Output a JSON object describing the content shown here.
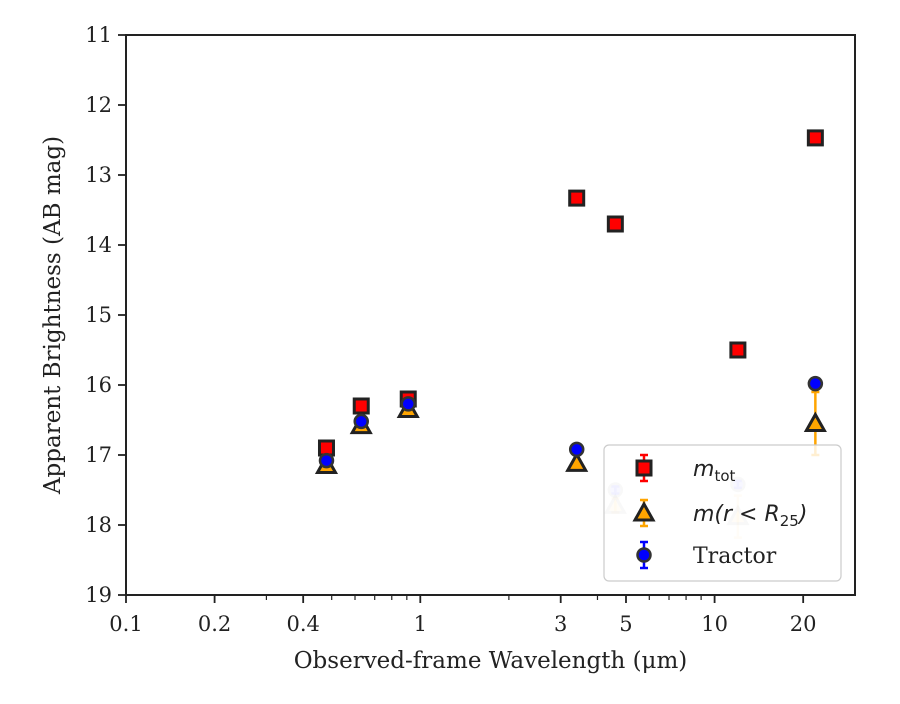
{
  "chart_data": {
    "type": "scatter",
    "xlabel": "Observed-frame Wavelength (μm)",
    "ylabel": "Apparent Brightness (AB mag)",
    "xscale": "log",
    "xlim": [
      0.1,
      30
    ],
    "ylim": [
      19,
      11
    ],
    "y_inverted": true,
    "grid": false,
    "legend_position": "lower-right",
    "x_ticks": [
      0.1,
      0.2,
      0.4,
      1,
      3,
      5,
      10,
      20
    ],
    "x_tick_labels": [
      "0.1",
      "0.2",
      "0.4",
      "1",
      "3",
      "5",
      "10",
      "20"
    ],
    "y_ticks": [
      11,
      12,
      13,
      14,
      15,
      16,
      17,
      18,
      19
    ],
    "y_tick_labels": [
      "11",
      "12",
      "13",
      "14",
      "15",
      "16",
      "17",
      "18",
      "19"
    ],
    "series": [
      {
        "name": "m_tot",
        "legend_main": "m",
        "legend_sub": "tot",
        "marker": "square",
        "fill": "#ff0000",
        "edge": "#222222",
        "errcolor": "#ff0000",
        "points": [
          {
            "x": 0.48,
            "y": 16.9,
            "err": 0.05
          },
          {
            "x": 0.63,
            "y": 16.3,
            "err": 0.05
          },
          {
            "x": 0.91,
            "y": 16.2,
            "err": 0.05
          },
          {
            "x": 3.4,
            "y": 13.33,
            "err": 0.03
          },
          {
            "x": 4.6,
            "y": 13.7,
            "err": 0.03
          },
          {
            "x": 12.0,
            "y": 15.5,
            "err": 0.05
          },
          {
            "x": 22.0,
            "y": 12.47,
            "err": 0.03
          }
        ]
      },
      {
        "name": "m(r < R25)",
        "legend_main": "m(r < R",
        "legend_sub": "25",
        "legend_tail": ")",
        "marker": "triangle",
        "fill": "#ffa500",
        "edge": "#222222",
        "errcolor": "#ffa500",
        "points": [
          {
            "x": 0.48,
            "y": 17.15,
            "err": 0.05,
            "faded": false
          },
          {
            "x": 0.63,
            "y": 16.58,
            "err": 0.05,
            "faded": false
          },
          {
            "x": 0.91,
            "y": 16.35,
            "err": 0.05,
            "faded": false
          },
          {
            "x": 3.4,
            "y": 17.12,
            "err": 0.05,
            "faded": false
          },
          {
            "x": 4.6,
            "y": 17.72,
            "err": 0.1,
            "faded": true
          },
          {
            "x": 12.0,
            "y": 17.88,
            "err": 0.3,
            "faded": true
          },
          {
            "x": 22.0,
            "y": 16.55,
            "err": 0.45,
            "faded": false
          }
        ]
      },
      {
        "name": "Tractor",
        "legend_main": "Tractor",
        "marker": "circle",
        "fill": "#0000ff",
        "edge": "#333333",
        "errcolor": "#0000ff",
        "points": [
          {
            "x": 0.48,
            "y": 17.08,
            "err": 0.03,
            "faded": false
          },
          {
            "x": 0.63,
            "y": 16.52,
            "err": 0.03,
            "faded": false
          },
          {
            "x": 0.91,
            "y": 16.27,
            "err": 0.03,
            "faded": false
          },
          {
            "x": 3.4,
            "y": 16.92,
            "err": 0.05,
            "faded": false
          },
          {
            "x": 4.6,
            "y": 17.5,
            "err": 0.05,
            "faded": true
          },
          {
            "x": 12.0,
            "y": 17.42,
            "err": 0.05,
            "faded": true
          },
          {
            "x": 22.0,
            "y": 15.98,
            "err": 0.05,
            "faded": false
          }
        ]
      }
    ]
  }
}
